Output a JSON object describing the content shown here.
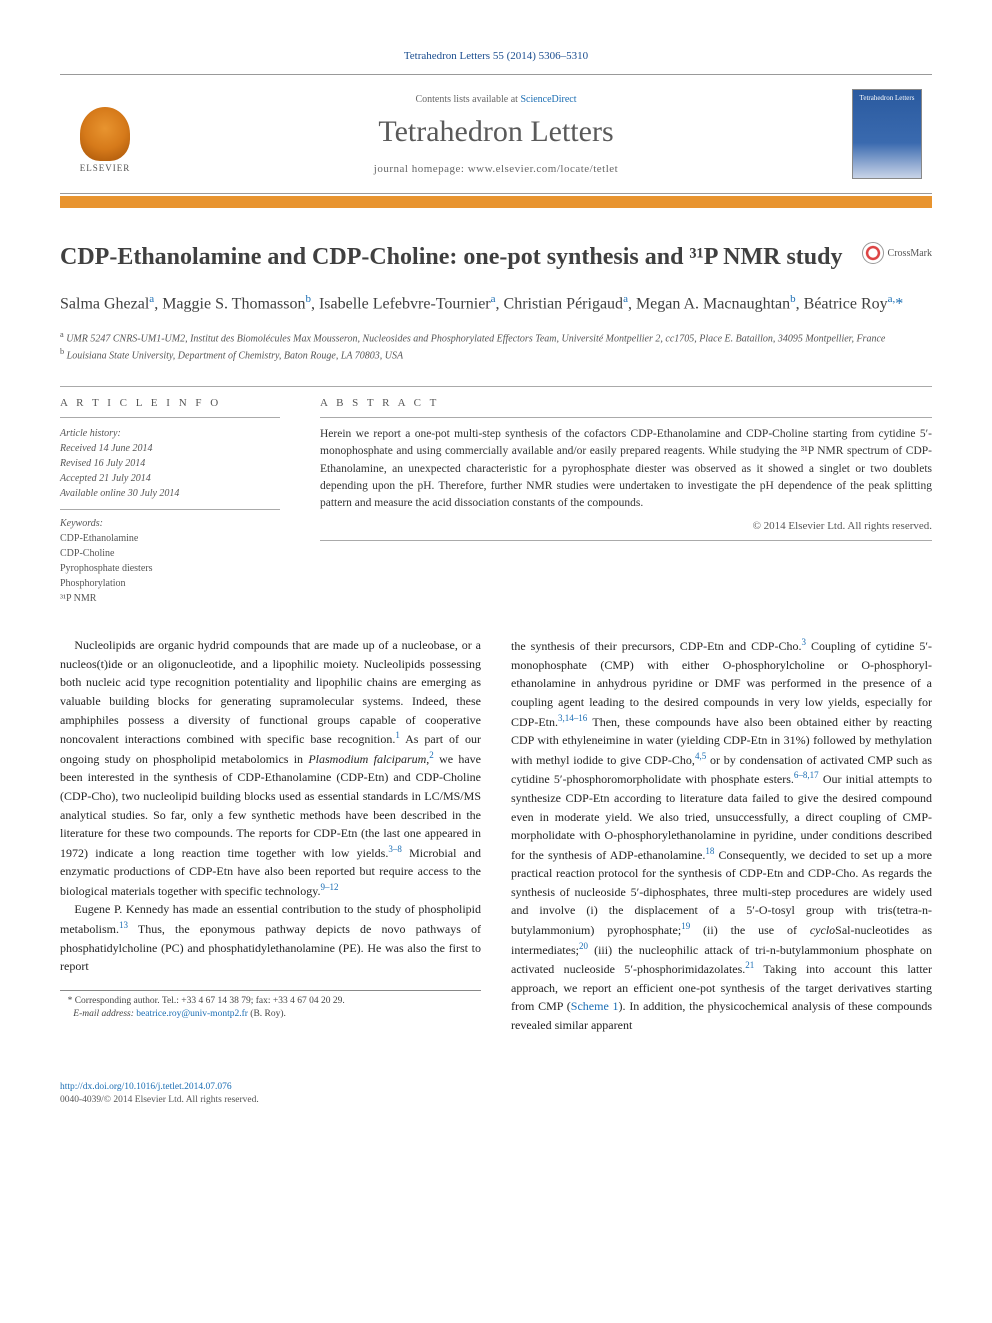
{
  "citation": "Tetrahedron Letters 55 (2014) 5306–5310",
  "header": {
    "contents_prefix": "Contents lists available at ",
    "contents_link": "ScienceDirect",
    "journal_title": "Tetrahedron Letters",
    "homepage_prefix": "journal homepage: ",
    "homepage_url": "www.elsevier.com/locate/tetlet",
    "publisher_label": "ELSEVIER",
    "cover_label": "Tetrahedron Letters"
  },
  "title": "CDP-Ethanolamine and CDP-Choline: one-pot synthesis and ³¹P NMR study",
  "crossmark_label": "CrossMark",
  "authors_html": "Salma Ghezal<sup>a</sup>, Maggie S. Thomasson<sup>b</sup>, Isabelle Lefebvre-Tournier<sup>a</sup>, Christian Périgaud<sup>a</sup>, Megan A. Macnaughtan<sup>b</sup>, Béatrice Roy<sup>a,</sup><span class='corr-star'>*</span>",
  "affiliations": {
    "a": "UMR 5247 CNRS-UM1-UM2, Institut des Biomolécules Max Mousseron, Nucleosides and Phosphorylated Effectors Team, Université Montpellier 2, cc1705, Place E. Bataillon, 34095 Montpellier, France",
    "b": "Louisiana State University, Department of Chemistry, Baton Rouge, LA 70803, USA"
  },
  "info": {
    "heading": "A R T I C L E   I N F O",
    "history_title": "Article history:",
    "received": "Received 14 June 2014",
    "revised": "Revised 16 July 2014",
    "accepted": "Accepted 21 July 2014",
    "online": "Available online 30 July 2014",
    "keywords_title": "Keywords:",
    "keywords": [
      "CDP-Ethanolamine",
      "CDP-Choline",
      "Pyrophosphate diesters",
      "Phosphorylation",
      "³¹P NMR"
    ]
  },
  "abstract": {
    "heading": "A B S T R A C T",
    "text": "Herein we report a one-pot multi-step synthesis of the cofactors CDP-Ethanolamine and CDP-Choline starting from cytidine 5′-monophosphate and using commercially available and/or easily prepared reagents. While studying the ³¹P NMR spectrum of CDP-Ethanolamine, an unexpected characteristic for a pyrophosphate diester was observed as it showed a singlet or two doublets depending upon the pH. Therefore, further NMR studies were undertaken to investigate the pH dependence of the peak splitting pattern and measure the acid dissociation constants of the compounds.",
    "copyright": "© 2014 Elsevier Ltd. All rights reserved."
  },
  "body": {
    "p1": "Nucleolipids are organic hydrid compounds that are made up of a nucleobase, or a nucleos(t)ide or an oligonucleotide, and a lipophilic moiety. Nucleolipids possessing both nucleic acid type recognition potentiality and lipophilic chains are emerging as valuable building blocks for generating supramolecular systems. Indeed, these amphiphiles possess a diversity of functional groups capable of cooperative noncovalent interactions combined with specific base recognition.",
    "p1_tail": " As part of our ongoing study on phospholipid metabolomics in ",
    "p1_species": "Plasmodium falciparum",
    "p1_tail2": " we have been interested in the synthesis of CDP-Ethanolamine (CDP-Etn) and CDP-Choline (CDP-Cho), two nucleolipid building blocks used as essential standards in LC/MS/MS analytical studies. So far, only a few synthetic methods have been described in the literature for these two compounds. The reports for CDP-Etn (the last one appeared in 1972) indicate a long reaction time together with low yields.",
    "p1_tail3": " Microbial and enzymatic productions of CDP-Etn have also been reported but require access to the biological materials together with specific technology.",
    "p2": "Eugene P. Kennedy has made an essential contribution to the study of phospholipid metabolism.",
    "p2_tail": " Thus, the eponymous pathway depicts de novo pathways of phosphatidylcholine (PC) and phosphatidylethanolamine (PE). He was also the first to report",
    "p3": "the synthesis of their precursors, CDP-Etn and CDP-Cho.",
    "p3_tail": " Coupling of cytidine 5′-monophosphate (CMP) with either O-phosphorylcholine or O-phosphoryl-ethanolamine in anhydrous pyridine or DMF was performed in the presence of a coupling agent leading to the desired compounds in very low yields, especially for CDP-Etn.",
    "p3_tail2": " Then, these compounds have also been obtained either by reacting CDP with ethyleneimine in water (yielding CDP-Etn in 31%) followed by methylation with methyl iodide to give CDP-Cho,",
    "p3_tail3": " or by condensation of activated CMP such as cytidine 5′-phosphoromorpholidate with phosphate esters.",
    "p3_tail4": " Our initial attempts to synthesize CDP-Etn according to literature data failed to give the desired compound even in moderate yield. We also tried, unsuccessfully, a direct coupling of CMP-morpholidate with O-phosphorylethanolamine in pyridine, under conditions described for the synthesis of ADP-ethanolamine.",
    "p3_tail5": " Consequently, we decided to set up a more practical reaction protocol for the synthesis of CDP-Etn and CDP-Cho. As regards the synthesis of nucleoside 5′-diphosphates, three multi-step procedures are widely used and involve (i) the displacement of a 5′-O-tosyl group with tris(tetra-n-butylammonium) pyrophosphate;",
    "p3_tail6": " (ii) the use of ",
    "p3_cyclo": "cyclo",
    "p3_tail7": "Sal-nucleotides as intermediates;",
    "p3_tail8": " (iii) the nucleophilic attack of tri-n-butylammonium phosphate on activated nucleoside 5′-phosphorimidazolates.",
    "p3_tail9": " Taking into account this latter approach, we report an efficient one-pot synthesis of the target derivatives starting from CMP (",
    "p3_scheme": "Scheme 1",
    "p3_tail10": "). In addition, the physicochemical analysis of these compounds revealed similar apparent",
    "refs": {
      "r1": "1",
      "r2": "2",
      "r3_8": "3–8",
      "r9_12": "9–12",
      "r13": "13",
      "r3": "3",
      "r3_14_16": "3,14–16",
      "r4_5": "4,5",
      "r6_8_17": "6–8,17",
      "r18": "18",
      "r19": "19",
      "r20": "20",
      "r21": "21"
    }
  },
  "footnote": {
    "corr": "* Corresponding author. Tel.: +33 4 67 14 38 79; fax: +33 4 67 04 20 29.",
    "email_label": "E-mail address:",
    "email": "beatrice.roy@univ-montp2.fr",
    "email_suffix": " (B. Roy)."
  },
  "footer": {
    "doi": "http://dx.doi.org/10.1016/j.tetlet.2014.07.076",
    "issn_line": "0040-4039/© 2014 Elsevier Ltd. All rights reserved."
  },
  "colors": {
    "link": "#1a6db3",
    "orange": "#e8942f",
    "text": "#333333",
    "grey": "#555555",
    "rule": "#999999"
  }
}
